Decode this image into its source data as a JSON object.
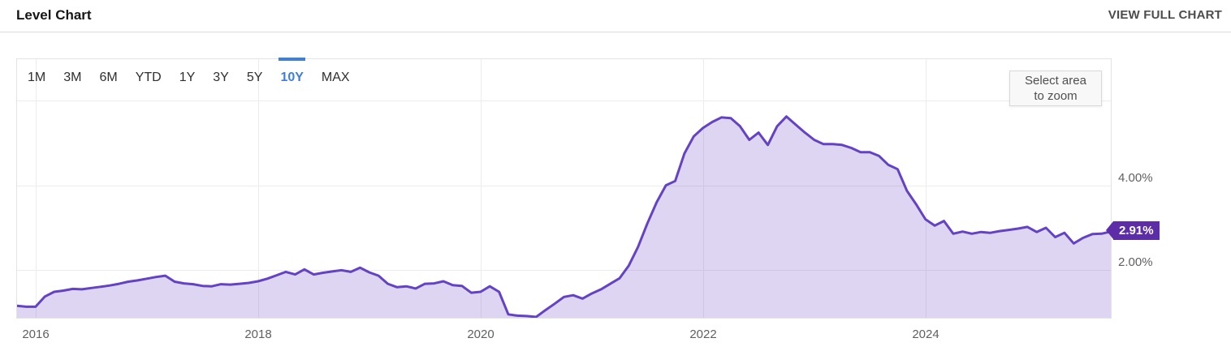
{
  "header": {
    "title": "Level Chart",
    "view_full_chart_label": "VIEW FULL CHART"
  },
  "toolbar": {
    "ranges": [
      "1M",
      "3M",
      "6M",
      "YTD",
      "1Y",
      "3Y",
      "5Y",
      "10Y",
      "MAX"
    ],
    "active_range": "10Y"
  },
  "zoom_hint": {
    "line1": "Select area",
    "line2": "to zoom"
  },
  "chart_data": {
    "type": "area",
    "title": "Level Chart",
    "series_name": "Level",
    "unit": "%",
    "frequency": "monthly",
    "start_year": 2015,
    "start_month": 11,
    "end": "2025-09",
    "values": [
      1.16,
      1.14,
      1.14,
      1.38,
      1.49,
      1.52,
      1.56,
      1.55,
      1.58,
      1.61,
      1.64,
      1.68,
      1.73,
      1.76,
      1.8,
      1.84,
      1.87,
      1.73,
      1.69,
      1.67,
      1.63,
      1.62,
      1.67,
      1.66,
      1.68,
      1.7,
      1.74,
      1.8,
      1.88,
      1.96,
      1.9,
      2.02,
      1.9,
      1.94,
      1.97,
      2.0,
      1.96,
      2.06,
      1.95,
      1.87,
      1.68,
      1.6,
      1.62,
      1.57,
      1.68,
      1.69,
      1.74,
      1.65,
      1.63,
      1.47,
      1.49,
      1.62,
      1.49,
      0.96,
      0.93,
      0.92,
      0.9,
      1.06,
      1.21,
      1.37,
      1.41,
      1.33,
      1.45,
      1.55,
      1.68,
      1.81,
      2.11,
      2.55,
      3.1,
      3.6,
      4.0,
      4.1,
      4.75,
      5.15,
      5.35,
      5.49,
      5.6,
      5.58,
      5.39,
      5.07,
      5.24,
      4.95,
      5.39,
      5.62,
      5.43,
      5.24,
      5.07,
      4.97,
      4.97,
      4.95,
      4.88,
      4.78,
      4.78,
      4.69,
      4.48,
      4.38,
      3.87,
      3.55,
      3.2,
      3.05,
      3.16,
      2.86,
      2.91,
      2.86,
      2.9,
      2.88,
      2.92,
      2.95,
      2.98,
      3.02,
      2.9,
      3.0,
      2.78,
      2.88,
      2.63,
      2.76,
      2.85,
      2.86,
      2.91
    ],
    "x_ticks": [
      {
        "year": 2016,
        "label": "2016"
      },
      {
        "year": 2018,
        "label": "2018"
      },
      {
        "year": 2020,
        "label": "2020"
      },
      {
        "year": 2022,
        "label": "2022"
      },
      {
        "year": 2024,
        "label": "2024"
      }
    ],
    "y_ticks": [
      {
        "value": 4,
        "label": "4.00%"
      },
      {
        "value": 2,
        "label": "2.00%"
      }
    ],
    "y_gridlines": [
      2,
      4,
      6
    ],
    "xlim_years": [
      2015.8333,
      2025.6667
    ],
    "ylim": [
      0.88,
      6.97
    ],
    "grid": true,
    "legend_position": "none",
    "current_value": 2.91,
    "current_value_label": "2.91%"
  },
  "colors": {
    "accent": "#3d7fe0",
    "line": "#6342c4",
    "fill": "rgba(99,66,196,0.22)",
    "badge_bg": "#5d2da7",
    "grid": "#ececec",
    "border": "#e3e3e3",
    "axis_text": "#5f6062",
    "title_text": "#161616",
    "link_text": "#4c4c4c",
    "btn_text": "#2f2f31",
    "hint_bg": "#f8f8f8",
    "hint_border": "#d9d9d9",
    "hint_text": "#4f4f4f",
    "header_border": "#dcdcdc"
  }
}
